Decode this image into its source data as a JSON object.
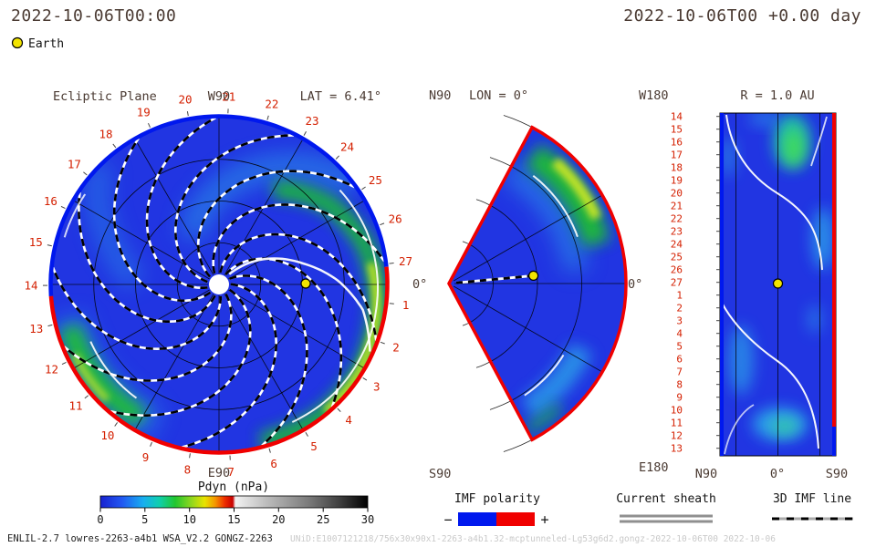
{
  "header": {
    "datetime_left": "2022-10-06T00:00",
    "datetime_right": "2022-10-06T00 +0.00 day"
  },
  "earth_legend": {
    "label": "Earth",
    "marker_color": "#f2e400"
  },
  "colors": {
    "label": "#4a3a32",
    "date_red": "#d41f00",
    "base_blue": "#2135e2",
    "border_blue": "#0018ee",
    "border_red": "#f00000",
    "cyan": "#2fb3ea",
    "green": "#1cc42c",
    "yellow_green": "#cbe822",
    "teal": "#22d0a0"
  },
  "panels": {
    "ecliptic": {
      "title": "Ecliptic Plane",
      "lat_label": "LAT = 6.41°",
      "top_label": "W90",
      "bottom_label": "E90",
      "right_label": "0°"
    },
    "meridional": {
      "title": "LON = 0°",
      "top_left_label": "N90",
      "bottom_left_label": "S90",
      "right_label": "0°"
    },
    "radial_map": {
      "title": "R = 1.0 AU",
      "top_left_label": "W180",
      "bottom_left_label": "E180",
      "x_axis_labels": [
        "N90",
        "0°",
        "S90"
      ]
    }
  },
  "date_ring": {
    "days": [
      1,
      2,
      3,
      4,
      5,
      6,
      7,
      8,
      9,
      10,
      11,
      12,
      13,
      14,
      15,
      16,
      17,
      18,
      19,
      20,
      21,
      22,
      23,
      24,
      25,
      26,
      27
    ]
  },
  "radial_rows": [
    14,
    15,
    16,
    17,
    18,
    19,
    20,
    21,
    22,
    23,
    24,
    25,
    26,
    27,
    1,
    2,
    3,
    4,
    5,
    6,
    7,
    8,
    9,
    10,
    11,
    12,
    13
  ],
  "colorbar": {
    "title": "Pdyn (nPa)",
    "min": 0,
    "max": 30,
    "ticks": [
      0,
      5,
      10,
      15,
      20,
      25,
      30
    ],
    "stops": [
      [
        0,
        "#1822cf"
      ],
      [
        0.08,
        "#2257f2"
      ],
      [
        0.16,
        "#18aef0"
      ],
      [
        0.22,
        "#10cfae"
      ],
      [
        0.28,
        "#22c62e"
      ],
      [
        0.34,
        "#8fd71f"
      ],
      [
        0.39,
        "#e8e300"
      ],
      [
        0.43,
        "#f59500"
      ],
      [
        0.465,
        "#ee2e00"
      ],
      [
        0.495,
        "#c80000"
      ],
      [
        0.505,
        "#f2f2f2"
      ],
      [
        0.62,
        "#bdbdbd"
      ],
      [
        0.78,
        "#7a7a7a"
      ],
      [
        0.9,
        "#3c3c3c"
      ],
      [
        1,
        "#000000"
      ]
    ]
  },
  "legend": {
    "imf_polarity": {
      "label": "IMF polarity",
      "minus": "−",
      "plus": "+",
      "neg_color": "#0018ee",
      "pos_color": "#f00000"
    },
    "current_sheath": {
      "label": "Current sheath"
    },
    "imf_line": {
      "label": "3D IMF line"
    }
  },
  "footer": {
    "model_info": "ENLIL-2.7 lowres-2263-a4b1 WSA_V2.2 GONGZ-2263",
    "watermark": "UNiD:E1007121218/756x30x90x1-2263-a4b1.32-mcptunneled-Lg53g6d2.gongz-2022-10-06T00   2022-10-06"
  },
  "chart_data": [
    {
      "type": "heatmap",
      "panel": "Ecliptic Plane",
      "projection": "polar disk viewed from solar north, Sun at center, outer boundary ~1.7 AU",
      "quantity": "solar wind dynamic pressure Pdyn",
      "units": "nPa",
      "color_range": [
        0,
        30
      ],
      "plane_latitude": "LAT = 6.41°",
      "angular_labels": {
        "top": "W90",
        "bottom": "E90",
        "right": "0°"
      },
      "day_of_month_ring": [
        1,
        2,
        3,
        4,
        5,
        6,
        7,
        8,
        9,
        10,
        11,
        12,
        13,
        14,
        15,
        16,
        17,
        18,
        19,
        20,
        21,
        22,
        23,
        24,
        25,
        26,
        27
      ],
      "outer_boundary_polarity": {
        "top_half": "negative IMF (blue arc)",
        "bottom_half": "positive IMF (red arc)"
      },
      "background_level_nPa": "~2-4 (blue)",
      "features": [
        "13 dashed black/white Parker-spiral 3D IMF lines",
        "white current-sheet spiral passing just west of Earth",
        "green/yellow corotating high-pressure stream along the right (east) limb near 0°, ~10-14 nPa",
        "green high-pressure blob at lower-left limb near day 10-12",
        "Earth marker (yellow) on the 0° sun-earth line",
        "white Sun disk at center"
      ]
    },
    {
      "type": "heatmap",
      "panel": "Meridional plane",
      "title": "LON = 0°",
      "projection": "polar wedge from N90 to S90, Sun at apex, Earth on equator",
      "quantity": "Pdyn (nPa), same 0-30 scale",
      "labels": {
        "top_left": "N90",
        "bottom_left": "S90",
        "right": "0°"
      },
      "features": [
        "red outer boundary (positive polarity)",
        "bright green/yellow high-pressure stream at northern mid-latitudes near outer boundary",
        "cyan enhancement at southern latitudes near outer boundary",
        "dashed black/white sun-earth line with yellow Earth marker"
      ]
    },
    {
      "type": "heatmap",
      "panel": "Radial map",
      "title": "R = 1.0 AU",
      "projection": "latitude (horizontal, N90 to S90) vs longitude/time (vertical, W180 top to E180 bottom)",
      "x_axis": [
        "N90",
        "0°",
        "S90"
      ],
      "y_axis_day_rows": [
        14,
        15,
        16,
        17,
        18,
        19,
        20,
        21,
        22,
        23,
        24,
        25,
        26,
        27,
        1,
        2,
        3,
        4,
        5,
        6,
        7,
        8,
        9,
        10,
        11,
        12,
        13
      ],
      "features": [
        "left boundary blue (negative IMF), right boundary red (positive IMF)",
        "white current-sheet curves crossing the map",
        "cyan/green enhanced-pressure patches near top, right middle and bottom",
        "yellow Earth marker at lat 0°, lon 0° (map center)"
      ]
    }
  ]
}
